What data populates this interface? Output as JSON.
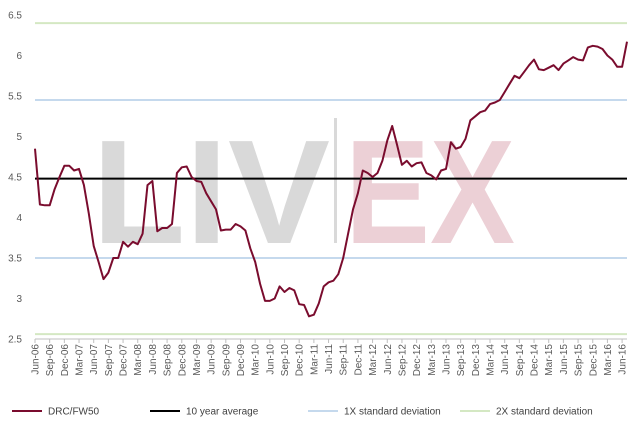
{
  "chart_data": {
    "type": "line",
    "title": "",
    "xlabel": "",
    "ylabel": "",
    "ylim": [
      2.5,
      6.5
    ],
    "yticks": [
      2.5,
      3,
      3.5,
      4,
      4.5,
      5,
      5.5,
      6,
      6.5
    ],
    "ytick_labels": [
      "2.5",
      "3",
      "3.5",
      "4",
      "4.5",
      "5",
      "5.5",
      "6",
      "6.5"
    ],
    "grid": false,
    "legend_position": "bottom",
    "watermark": "LIV-EX",
    "x_tick_labels": [
      "Jun-06",
      "Sep-06",
      "Dec-06",
      "Mar-07",
      "Jun-07",
      "Sep-07",
      "Dec-07",
      "Mar-08",
      "Jun-08",
      "Sep-08",
      "Dec-08",
      "Mar-09",
      "Jun-09",
      "Sep-09",
      "Dec-09",
      "Mar-10",
      "Jun-10",
      "Sep-10",
      "Dec-10",
      "Mar-11",
      "Jun-11",
      "Sep-11",
      "Dec-11",
      "Mar-12",
      "Jun-12",
      "Sep-12",
      "Dec-12",
      "Mar-13",
      "Jun-13",
      "Sep-13",
      "Dec-13",
      "Mar-14",
      "Jun-14",
      "Sep-14",
      "Dec-14",
      "Mar-15",
      "Jun-15",
      "Sep-15",
      "Dec-15",
      "Mar-16",
      "Jun-16"
    ],
    "series": [
      {
        "name": "DRC/FW50",
        "color": "#7a0c2e",
        "kind": "monthly",
        "start": "Jun-06",
        "values": [
          4.85,
          4.16,
          4.15,
          4.15,
          4.35,
          4.5,
          4.64,
          4.64,
          4.58,
          4.6,
          4.4,
          4.05,
          3.65,
          3.45,
          3.24,
          3.32,
          3.5,
          3.5,
          3.7,
          3.64,
          3.7,
          3.67,
          3.8,
          4.4,
          4.45,
          3.83,
          3.87,
          3.87,
          3.92,
          4.55,
          4.62,
          4.63,
          4.5,
          4.45,
          4.44,
          4.3,
          4.2,
          4.1,
          3.84,
          3.85,
          3.85,
          3.92,
          3.89,
          3.84,
          3.62,
          3.45,
          3.18,
          2.97,
          2.97,
          3.0,
          3.15,
          3.08,
          3.13,
          3.1,
          2.93,
          2.92,
          2.78,
          2.8,
          2.94,
          3.15,
          3.2,
          3.22,
          3.3,
          3.5,
          3.8,
          4.1,
          4.3,
          4.58,
          4.55,
          4.5,
          4.55,
          4.7,
          4.95,
          5.13,
          4.9,
          4.65,
          4.7,
          4.63,
          4.67,
          4.68,
          4.55,
          4.52,
          4.47,
          4.58,
          4.6,
          4.93,
          4.85,
          4.87,
          4.97,
          5.2,
          5.25,
          5.3,
          5.32,
          5.4,
          5.42,
          5.45,
          5.55,
          5.65,
          5.75,
          5.72,
          5.8,
          5.88,
          5.95,
          5.83,
          5.82,
          5.85,
          5.88,
          5.82,
          5.9,
          5.94,
          5.98,
          5.95,
          5.94,
          6.1,
          6.12,
          6.11,
          6.08,
          6.0,
          5.95,
          5.86,
          5.86,
          6.17
        ]
      },
      {
        "name": "10 year average",
        "color": "#000000",
        "kind": "constant",
        "value": 4.48
      },
      {
        "name": "1X standard deviation",
        "color": "#c5d9ed",
        "kind": "band",
        "values": [
          3.5,
          5.45
        ]
      },
      {
        "name": "2X standard deviation",
        "color": "#d4e8c3",
        "kind": "band",
        "values": [
          2.56,
          6.4
        ]
      }
    ]
  }
}
